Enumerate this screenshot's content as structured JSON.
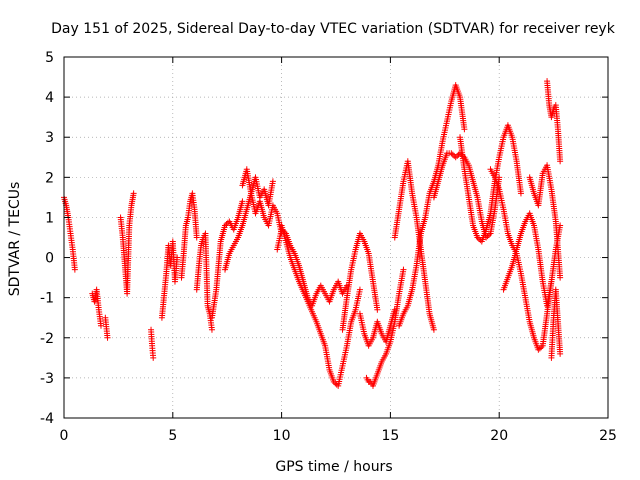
{
  "chart_data": {
    "type": "scatter",
    "title": "Day 151 of 2025, Sidereal Day-to-day VTEC variation (SDTVAR) for receiver reyk",
    "xlabel": "GPS time / hours",
    "ylabel": "SDTVAR / TECUs",
    "xlim": [
      0,
      25
    ],
    "ylim": [
      -4,
      5
    ],
    "xticks": [
      0,
      5,
      10,
      15,
      20,
      25
    ],
    "yticks": [
      -4,
      -3,
      -2,
      -1,
      0,
      1,
      2,
      3,
      4,
      5
    ],
    "xtick_labels": [
      "0",
      "5",
      "10",
      "15",
      "20",
      "25"
    ],
    "ytick_labels": [
      "-4",
      "-3",
      "-2",
      "-1",
      "0",
      "1",
      "2",
      "3",
      "4",
      "5"
    ],
    "grid": true,
    "marker": "+",
    "color": "#ff0000",
    "series": [
      {
        "name": "reyk",
        "segments": [
          {
            "x": [
              0.0,
              0.1,
              0.2,
              0.3,
              0.4,
              0.5
            ],
            "y": [
              1.5,
              1.3,
              1.0,
              0.6,
              0.2,
              -0.3
            ]
          },
          {
            "x": [
              1.3,
              1.4,
              1.5,
              1.6,
              1.7
            ],
            "y": [
              -0.9,
              -1.1,
              -0.8,
              -1.3,
              -1.7
            ]
          },
          {
            "x": [
              1.9,
              2.0
            ],
            "y": [
              -1.5,
              -2.0
            ]
          },
          {
            "x": [
              2.6,
              2.7,
              2.8,
              2.9,
              3.0,
              3.1,
              3.2
            ],
            "y": [
              1.0,
              0.5,
              -0.2,
              -0.9,
              0.8,
              1.3,
              1.6
            ]
          },
          {
            "x": [
              4.0,
              4.05,
              4.1
            ],
            "y": [
              -1.8,
              -2.2,
              -2.5
            ]
          },
          {
            "x": [
              4.5,
              4.7,
              4.8,
              4.9,
              5.0,
              5.1,
              5.2
            ],
            "y": [
              -1.5,
              -0.4,
              0.3,
              -0.2,
              0.4,
              -0.6,
              0.0
            ]
          },
          {
            "x": [
              5.4,
              5.5,
              5.6,
              5.7,
              5.8,
              5.9,
              6.0,
              6.1
            ],
            "y": [
              -0.5,
              0.1,
              0.8,
              1.0,
              1.4,
              1.6,
              1.2,
              0.5
            ]
          },
          {
            "x": [
              6.1,
              6.2,
              6.3,
              6.4,
              6.5,
              6.6,
              6.7,
              6.8
            ],
            "y": [
              -0.8,
              -0.2,
              0.3,
              0.5,
              0.6,
              -1.2,
              -1.4,
              -1.8
            ]
          },
          {
            "x": [
              6.8,
              7.0,
              7.2,
              7.4,
              7.6,
              7.8,
              8.0,
              8.2
            ],
            "y": [
              -1.5,
              -0.8,
              0.4,
              0.8,
              0.9,
              0.7,
              1.0,
              1.4
            ]
          },
          {
            "x": [
              7.4,
              7.6,
              7.8,
              8.0,
              8.2,
              8.4,
              8.6,
              8.8,
              9.0,
              9.2,
              9.4,
              9.6
            ],
            "y": [
              -0.3,
              0.1,
              0.3,
              0.5,
              0.8,
              1.2,
              1.6,
              2.0,
              1.5,
              1.7,
              1.3,
              1.9
            ]
          },
          {
            "x": [
              8.2,
              8.4,
              8.6,
              8.8,
              9.0,
              9.2,
              9.4,
              9.6,
              9.8,
              10.0
            ],
            "y": [
              1.8,
              2.2,
              1.6,
              1.1,
              1.4,
              1.0,
              0.8,
              1.3,
              1.1,
              0.6
            ]
          },
          {
            "x": [
              9.8,
              10.0,
              10.2,
              10.4,
              10.6,
              10.8,
              11.0,
              11.2,
              11.4,
              11.6,
              11.8,
              12.0,
              12.2,
              12.4,
              12.6,
              12.8,
              13.0
            ],
            "y": [
              0.2,
              0.7,
              0.6,
              0.3,
              0.1,
              -0.2,
              -0.6,
              -1.0,
              -1.2,
              -0.9,
              -0.7,
              -0.9,
              -1.1,
              -0.8,
              -0.6,
              -0.9,
              -0.7
            ]
          },
          {
            "x": [
              10.0,
              10.4,
              10.8,
              11.2,
              11.6,
              12.0,
              12.2,
              12.4,
              12.6,
              12.8,
              13.0,
              13.2,
              13.4,
              13.6
            ],
            "y": [
              0.8,
              0.0,
              -0.6,
              -1.1,
              -1.6,
              -2.2,
              -2.8,
              -3.1,
              -3.2,
              -2.7,
              -2.2,
              -1.6,
              -1.3,
              -0.8
            ]
          },
          {
            "x": [
              12.8,
              13.0,
              13.2,
              13.4,
              13.6,
              13.8,
              14.0,
              14.2,
              14.4
            ],
            "y": [
              -1.8,
              -1.0,
              -0.3,
              0.2,
              0.6,
              0.4,
              0.1,
              -0.6,
              -1.3
            ]
          },
          {
            "x": [
              13.6,
              13.8,
              14.0,
              14.2,
              14.4,
              14.6,
              14.8,
              15.0,
              15.2
            ],
            "y": [
              -1.4,
              -1.9,
              -2.2,
              -2.0,
              -1.6,
              -1.9,
              -2.1,
              -1.7,
              -1.3
            ]
          },
          {
            "x": [
              13.9,
              14.0,
              14.1,
              14.2,
              14.4,
              14.6,
              14.8,
              15.0,
              15.2,
              15.4,
              15.6
            ],
            "y": [
              -3.0,
              -3.1,
              -3.1,
              -3.2,
              -2.9,
              -2.6,
              -2.4,
              -2.1,
              -1.6,
              -0.9,
              -0.3
            ]
          },
          {
            "x": [
              15.2,
              15.4,
              15.6,
              15.8,
              16.0,
              16.2,
              16.4,
              16.6,
              16.8,
              17.0
            ],
            "y": [
              0.5,
              1.2,
              1.9,
              2.4,
              1.6,
              1.0,
              0.2,
              -0.6,
              -1.4,
              -1.8
            ]
          },
          {
            "x": [
              15.4,
              15.6,
              15.8,
              16.0,
              16.2,
              16.4,
              16.6,
              16.8,
              17.0,
              17.2,
              17.4,
              17.6,
              17.8,
              18.0,
              18.2,
              18.4
            ],
            "y": [
              -1.7,
              -1.4,
              -1.2,
              -0.8,
              -0.2,
              0.6,
              1.0,
              1.6,
              1.9,
              2.3,
              2.9,
              3.4,
              3.9,
              4.3,
              4.0,
              3.2
            ]
          },
          {
            "x": [
              17.0,
              17.2,
              17.4,
              17.6,
              17.8,
              18.0,
              18.2,
              18.4,
              18.6,
              18.8,
              19.0,
              19.2,
              19.4,
              19.6,
              19.8,
              20.0
            ],
            "y": [
              1.5,
              1.9,
              2.3,
              2.6,
              2.6,
              2.5,
              2.6,
              2.5,
              2.3,
              1.9,
              1.5,
              0.9,
              0.5,
              0.6,
              1.2,
              2.0
            ]
          },
          {
            "x": [
              18.2,
              18.4,
              18.6,
              18.8,
              19.0,
              19.2,
              19.4,
              19.6,
              19.8,
              20.0,
              20.2,
              20.4,
              20.6,
              20.8,
              21.0
            ],
            "y": [
              3.0,
              2.2,
              1.5,
              0.8,
              0.5,
              0.4,
              0.7,
              1.1,
              1.9,
              2.5,
              3.0,
              3.3,
              3.0,
              2.4,
              1.6
            ]
          },
          {
            "x": [
              19.6,
              19.8,
              20.0,
              20.2,
              20.4,
              20.6,
              20.8,
              21.0,
              21.2,
              21.4,
              21.6,
              21.8,
              22.0,
              22.2,
              22.4
            ],
            "y": [
              2.2,
              2.0,
              1.7,
              1.2,
              0.6,
              0.3,
              0.1,
              -0.4,
              -1.0,
              -1.6,
              -2.0,
              -2.3,
              -2.2,
              -1.4,
              -0.6
            ]
          },
          {
            "x": [
              20.2,
              20.4,
              20.6,
              20.8,
              21.0,
              21.2,
              21.4,
              21.6,
              21.8,
              22.0,
              22.2,
              22.4,
              22.6,
              22.8
            ],
            "y": [
              -0.8,
              -0.5,
              -0.2,
              0.2,
              0.6,
              0.9,
              1.1,
              0.8,
              0.2,
              -0.6,
              -1.2,
              -0.6,
              0.2,
              0.8
            ]
          },
          {
            "x": [
              21.4,
              21.6,
              21.8,
              22.0,
              22.2,
              22.4,
              22.6,
              22.8
            ],
            "y": [
              2.0,
              1.6,
              1.3,
              2.1,
              2.3,
              1.7,
              0.9,
              -0.5
            ]
          },
          {
            "x": [
              22.2,
              22.3,
              22.4,
              22.5,
              22.6,
              22.7,
              22.8
            ],
            "y": [
              4.4,
              3.8,
              3.5,
              3.7,
              3.8,
              3.2,
              2.4
            ]
          },
          {
            "x": [
              22.4,
              22.5,
              22.6,
              22.7,
              22.8
            ],
            "y": [
              -2.5,
              -1.5,
              -0.8,
              -1.6,
              -2.4
            ]
          }
        ]
      }
    ]
  }
}
